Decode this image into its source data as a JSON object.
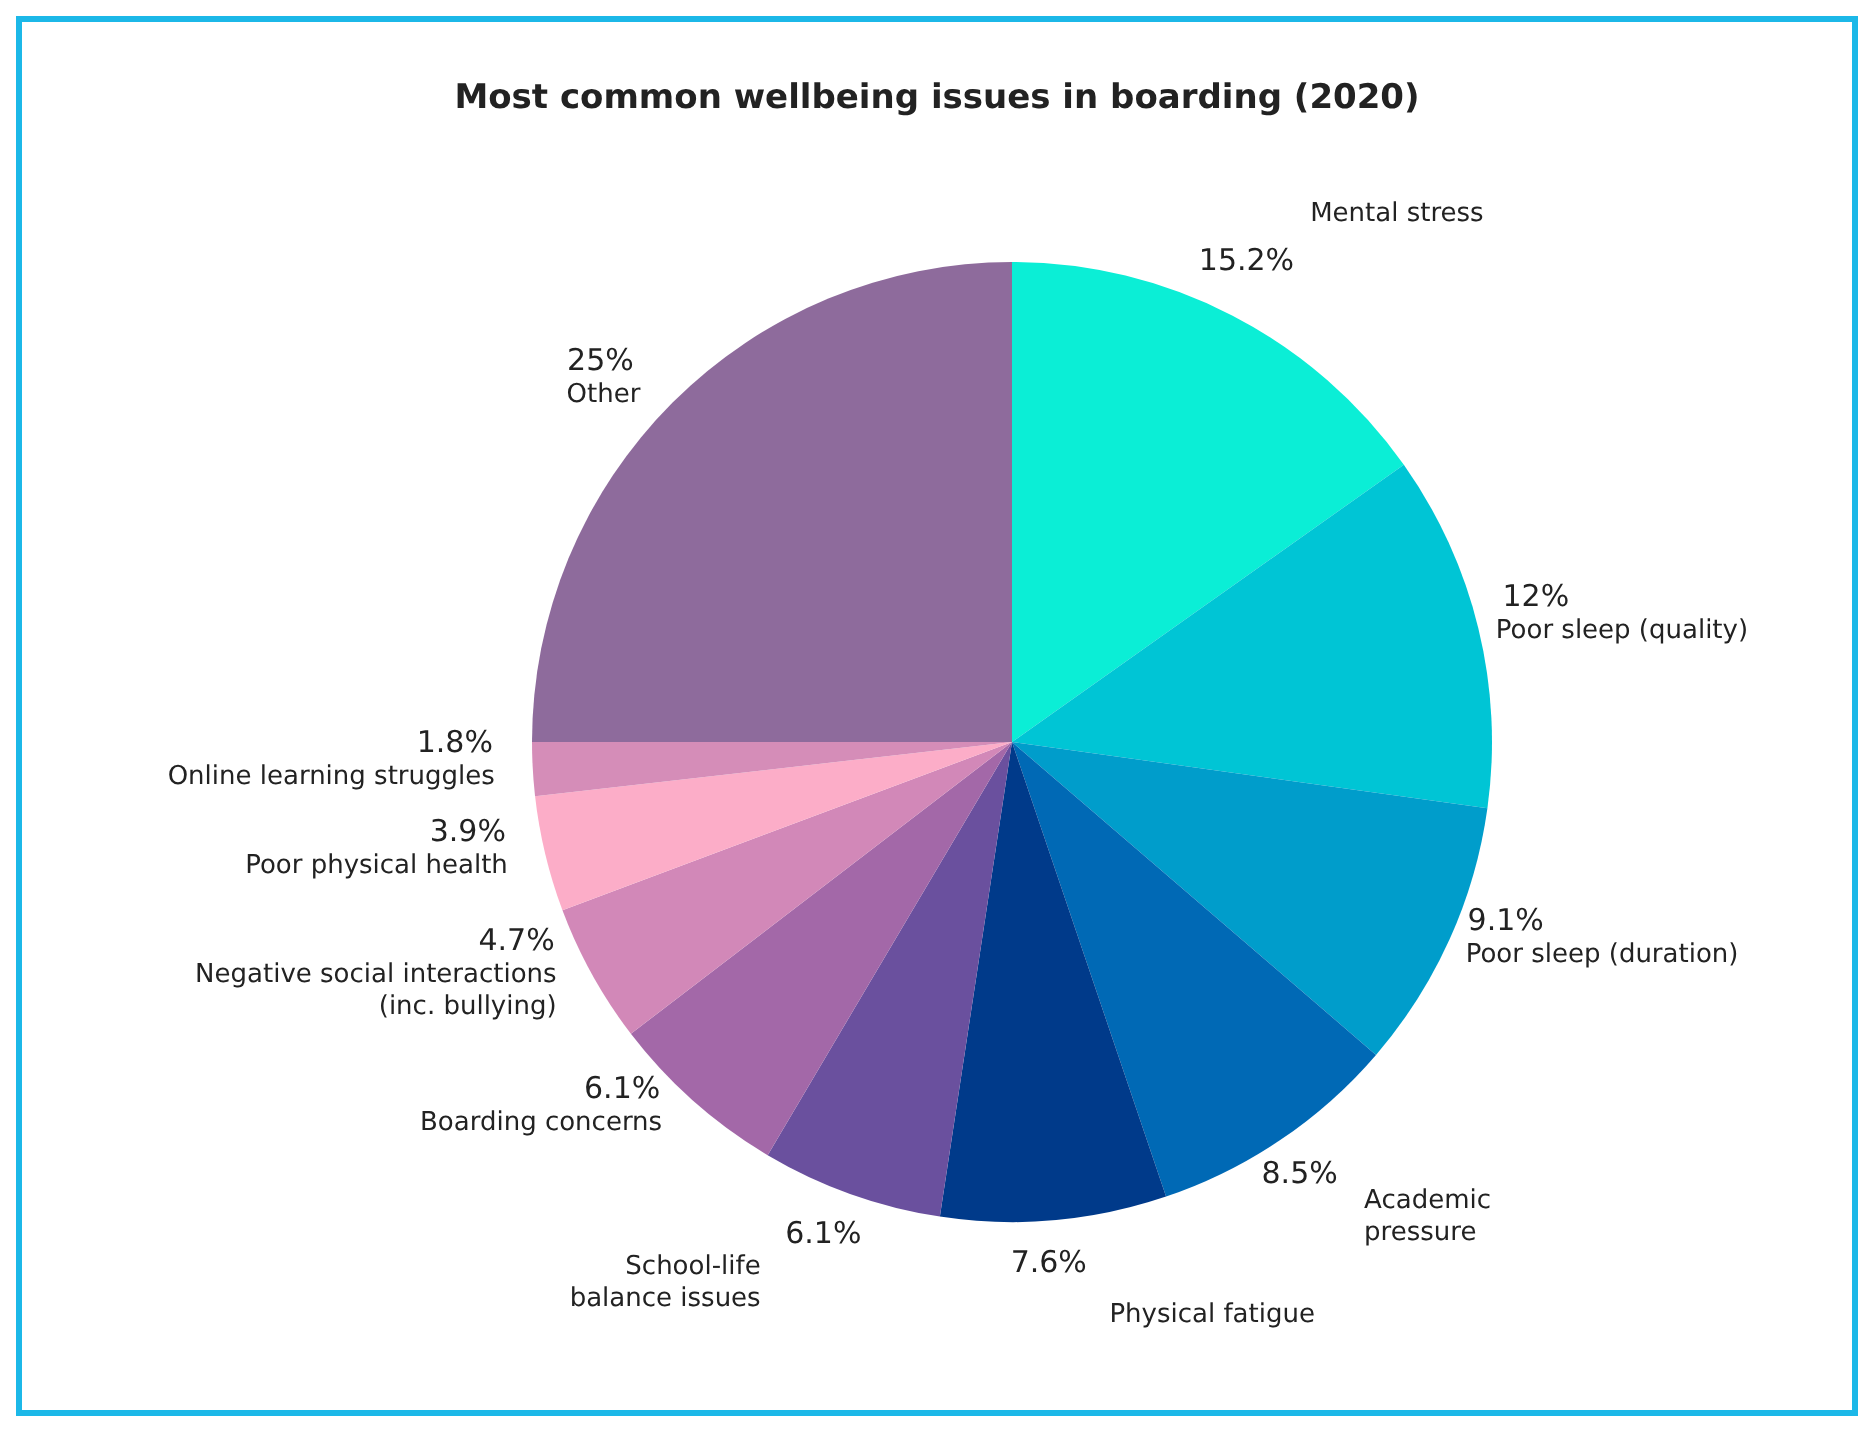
{
  "chart_data": {
    "type": "pie",
    "title": "Most common wellbeing issues in boarding (2020)",
    "categories": [
      "Mental stress",
      "Poor sleep (quality)",
      "Poor sleep (duration)",
      "Academic pressure",
      "Physical fatigue",
      "School-life balance issues",
      "Boarding concerns",
      "Negative social interactions (inc. bullying)",
      "Poor physical health",
      "Online learning struggles",
      "Other"
    ],
    "values": [
      15.2,
      12,
      9.1,
      8.5,
      7.6,
      6.1,
      6.1,
      4.7,
      3.9,
      1.8,
      25
    ],
    "value_labels": [
      "15.2%",
      "12%",
      "9.1%",
      "8.5%",
      "7.6%",
      "6.1%",
      "6.1%",
      "4.7%",
      "3.9%",
      "1.8%",
      "25%"
    ],
    "colors": [
      "#0beed6",
      "#00c5d5",
      "#009dcb",
      "#0069b5",
      "#003a8a",
      "#6a509e",
      "#a368a8",
      "#d288b8",
      "#fcadc8",
      "#d58db8",
      "#8e6b9c"
    ]
  }
}
